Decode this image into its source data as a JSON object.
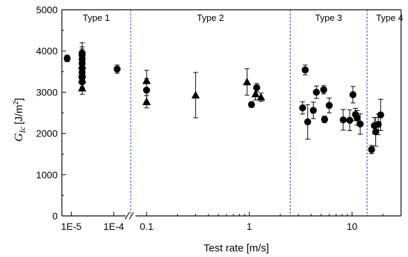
{
  "chart_data": {
    "type": "scatter",
    "xlabel": "Test rate [m/s]",
    "ylabel": {
      "symbol": "G",
      "subscript": "Ic",
      "unit": "[J/m",
      "unit_sup": "2",
      "unit_end": "]"
    },
    "ylim": [
      0,
      5000
    ],
    "yticks": [
      "0",
      "1000",
      "2000",
      "3000",
      "4000",
      "5000"
    ],
    "x_axis": {
      "broken": true,
      "low_segment_ticks": [
        {
          "value": 1e-05,
          "label": "1E-5"
        },
        {
          "value": 0.0001,
          "label": "1E-4"
        }
      ],
      "high_segment_ticks": [
        {
          "value": 0.1,
          "label": "0.1"
        },
        {
          "value": 1,
          "label": "1"
        },
        {
          "value": 10,
          "label": "10"
        }
      ],
      "scale": "log"
    },
    "grid": false,
    "regions": [
      {
        "label": "Type 1",
        "x_start": 6e-06,
        "x_end": 0.00025
      },
      {
        "label": "Type 2",
        "x_start": 0.00025,
        "x_end": 2.5
      },
      {
        "label": "Type 3",
        "x_start": 2.5,
        "x_end": 14
      },
      {
        "label": "Type 4",
        "x_start": 14,
        "x_end": 30
      }
    ],
    "region_line_color": "#2b3bd6",
    "marker_color": "#000000",
    "series": [
      {
        "marker": "circle",
        "points": [
          {
            "x": 8e-06,
            "y": 3820,
            "err": 80
          },
          {
            "x": 1.8e-05,
            "y": 3900,
            "err": 300
          },
          {
            "x": 1.8e-05,
            "y": 3800,
            "err": 250
          },
          {
            "x": 1.8e-05,
            "y": 3700,
            "err": 220
          },
          {
            "x": 1.8e-05,
            "y": 3580,
            "err": 200
          },
          {
            "x": 1.8e-05,
            "y": 3480,
            "err": 200
          },
          {
            "x": 1.8e-05,
            "y": 3360,
            "err": 230
          },
          {
            "x": 1.8e-05,
            "y": 3250,
            "err": 200
          },
          {
            "x": 1.8e-05,
            "y": 3950,
            "err": 150
          },
          {
            "x": 0.00012,
            "y": 3560,
            "err": 100
          },
          {
            "x": 0.1,
            "y": 3050,
            "err": 280
          },
          {
            "x": 1.05,
            "y": 2700,
            "err": 60
          },
          {
            "x": 1.18,
            "y": 3110,
            "err": 100
          },
          {
            "x": 3.3,
            "y": 2620,
            "err": 150
          },
          {
            "x": 3.5,
            "y": 3540,
            "err": 120
          },
          {
            "x": 3.7,
            "y": 2280,
            "err": 420
          },
          {
            "x": 4.2,
            "y": 2560,
            "err": 200
          },
          {
            "x": 4.5,
            "y": 3000,
            "err": 150
          },
          {
            "x": 5.3,
            "y": 3060,
            "err": 100
          },
          {
            "x": 5.4,
            "y": 2340,
            "err": 80
          },
          {
            "x": 6.0,
            "y": 2680,
            "err": 180
          },
          {
            "x": 8.2,
            "y": 2330,
            "err": 250
          },
          {
            "x": 9.5,
            "y": 2320,
            "err": 250
          },
          {
            "x": 10.2,
            "y": 2940,
            "err": 200
          },
          {
            "x": 10.8,
            "y": 2460,
            "err": 150
          },
          {
            "x": 11.2,
            "y": 2380,
            "err": 180
          },
          {
            "x": 12.0,
            "y": 2230,
            "err": 250
          },
          {
            "x": 15.5,
            "y": 1610,
            "err": 100
          },
          {
            "x": 16.5,
            "y": 2190,
            "err": 200
          },
          {
            "x": 17.0,
            "y": 2040,
            "err": 350
          },
          {
            "x": 18.0,
            "y": 2220,
            "err": 250
          },
          {
            "x": 19.0,
            "y": 2450,
            "err": 380
          }
        ]
      },
      {
        "marker": "triangle",
        "points": [
          {
            "x": 1.8e-05,
            "y": 3100,
            "err": 150
          },
          {
            "x": 1.8e-05,
            "y": 3300,
            "err": 200
          },
          {
            "x": 1.8e-05,
            "y": 3450,
            "err": 150
          },
          {
            "x": 1.8e-05,
            "y": 3650,
            "err": 150
          },
          {
            "x": 0.1,
            "y": 3280,
            "err": 250
          },
          {
            "x": 0.1,
            "y": 2770,
            "err": 150
          },
          {
            "x": 0.3,
            "y": 2930,
            "err": 550
          },
          {
            "x": 0.95,
            "y": 3250,
            "err": 320
          },
          {
            "x": 1.15,
            "y": 2960,
            "err": 150
          },
          {
            "x": 1.3,
            "y": 2880,
            "err": 100
          }
        ]
      }
    ]
  }
}
